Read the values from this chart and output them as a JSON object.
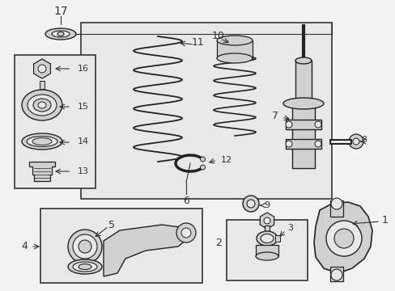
{
  "bg": "#f2f2f2",
  "box_bg": "#e8e8e8",
  "white": "#ffffff",
  "lc": "#333333",
  "part_fill": "#d0d0d0",
  "part_edge": "#222222",
  "fig_w": 4.89,
  "fig_h": 3.6,
  "dpi": 100,
  "label_fontsize": 9,
  "small_fontsize": 7.5
}
